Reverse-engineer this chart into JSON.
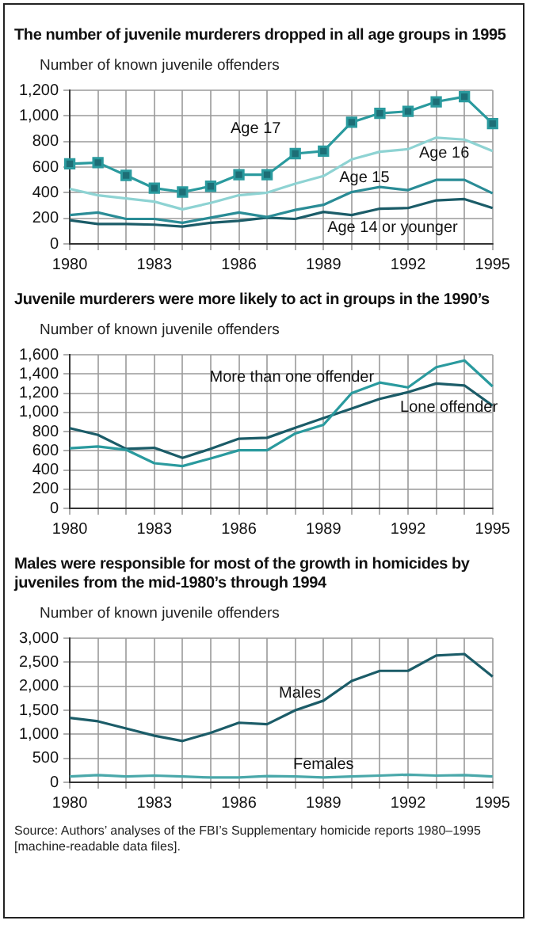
{
  "chart_data": [
    {
      "type": "line",
      "title": "The number of juvenile murderers dropped in all age groups in 1995",
      "ylabel": "Number of known juvenile offenders",
      "x": [
        1980,
        1981,
        1982,
        1983,
        1984,
        1985,
        1986,
        1987,
        1988,
        1989,
        1990,
        1991,
        1992,
        1993,
        1994,
        1995
      ],
      "xlim": [
        1980,
        1995
      ],
      "xticks": [
        1980,
        {
          "value": 1981,
          "label": null
        },
        {
          "value": 1982,
          "label": null
        },
        1983,
        {
          "value": 1984,
          "label": null
        },
        {
          "value": 1985,
          "label": null
        },
        1986,
        {
          "value": 1987,
          "label": null
        },
        {
          "value": 1988,
          "label": null
        },
        1989,
        {
          "value": 1990,
          "label": null
        },
        {
          "value": 1991,
          "label": null
        },
        1992,
        {
          "value": 1993,
          "label": null
        },
        {
          "value": 1994,
          "label": null
        },
        1995
      ],
      "ylim": [
        0,
        1200
      ],
      "yticks": [
        0,
        200,
        400,
        600,
        800,
        {
          "value": 1000,
          "label": "1,000"
        },
        {
          "value": 1200,
          "label": "1,200"
        }
      ],
      "grid": true,
      "legend": false,
      "series": [
        {
          "name": "Age 17",
          "color": "#2a9a9e",
          "marker": "square",
          "values": [
            625,
            635,
            535,
            435,
            405,
            450,
            540,
            540,
            705,
            725,
            950,
            1020,
            1035,
            1110,
            1150,
            940
          ]
        },
        {
          "name": "Age 16",
          "color": "#8ed3d3",
          "values": [
            430,
            380,
            355,
            330,
            270,
            320,
            380,
            400,
            470,
            530,
            660,
            720,
            740,
            830,
            815,
            725
          ]
        },
        {
          "name": "Age 15",
          "color": "#2a8c96",
          "values": [
            225,
            245,
            195,
            195,
            165,
            205,
            245,
            210,
            265,
            305,
            405,
            445,
            420,
            500,
            500,
            395
          ]
        },
        {
          "name": "Age 14 or younger",
          "color": "#1b5c68",
          "values": [
            185,
            155,
            155,
            150,
            135,
            165,
            180,
            205,
            195,
            250,
            225,
            275,
            280,
            340,
            350,
            280
          ]
        }
      ]
    },
    {
      "type": "line",
      "title": "Juvenile murderers were more likely to act in groups in the 1990’s",
      "ylabel": "Number of known juvenile offenders",
      "x": [
        1980,
        1981,
        1982,
        1983,
        1984,
        1985,
        1986,
        1987,
        1988,
        1989,
        1990,
        1991,
        1992,
        1993,
        1994,
        1995
      ],
      "xlim": [
        1980,
        1995
      ],
      "xticks": [
        1980,
        {
          "value": 1981,
          "label": null
        },
        {
          "value": 1982,
          "label": null
        },
        1983,
        {
          "value": 1984,
          "label": null
        },
        {
          "value": 1985,
          "label": null
        },
        1986,
        {
          "value": 1987,
          "label": null
        },
        {
          "value": 1988,
          "label": null
        },
        1989,
        {
          "value": 1990,
          "label": null
        },
        {
          "value": 1991,
          "label": null
        },
        1992,
        {
          "value": 1993,
          "label": null
        },
        {
          "value": 1994,
          "label": null
        },
        1995
      ],
      "ylim": [
        0,
        1600
      ],
      "yticks": [
        0,
        200,
        400,
        600,
        800,
        {
          "value": 1000,
          "label": "1,000"
        },
        {
          "value": 1200,
          "label": "1,200"
        },
        {
          "value": 1400,
          "label": "1,400"
        },
        {
          "value": 1600,
          "label": "1,600"
        }
      ],
      "grid": true,
      "legend": false,
      "series": [
        {
          "name": "More than one offender",
          "color": "#2a9a9e",
          "values": [
            625,
            645,
            610,
            470,
            440,
            520,
            605,
            605,
            780,
            870,
            1200,
            1310,
            1260,
            1470,
            1540,
            1270
          ]
        },
        {
          "name": "Lone offender",
          "color": "#1b5c68",
          "values": [
            835,
            765,
            620,
            630,
            525,
            620,
            725,
            735,
            840,
            940,
            1040,
            1140,
            1210,
            1300,
            1280,
            1070
          ]
        }
      ]
    },
    {
      "type": "line",
      "title": "Males were responsible for most of the growth in homicides by juveniles from the mid-1980’s through 1994",
      "ylabel": "Number of known juvenile offenders",
      "x": [
        1980,
        1981,
        1982,
        1983,
        1984,
        1985,
        1986,
        1987,
        1988,
        1989,
        1990,
        1991,
        1992,
        1993,
        1994,
        1995
      ],
      "xlim": [
        1980,
        1995
      ],
      "xticks": [
        1980,
        {
          "value": 1981,
          "label": null
        },
        {
          "value": 1982,
          "label": null
        },
        1983,
        {
          "value": 1984,
          "label": null
        },
        {
          "value": 1985,
          "label": null
        },
        1986,
        {
          "value": 1987,
          "label": null
        },
        {
          "value": 1988,
          "label": null
        },
        1989,
        {
          "value": 1990,
          "label": null
        },
        {
          "value": 1991,
          "label": null
        },
        1992,
        {
          "value": 1993,
          "label": null
        },
        {
          "value": 1994,
          "label": null
        },
        1995
      ],
      "ylim": [
        0,
        3000
      ],
      "yticks": [
        0,
        500,
        {
          "value": 1000,
          "label": "1,000"
        },
        {
          "value": 1500,
          "label": "1,500"
        },
        {
          "value": 2000,
          "label": "2,000"
        },
        {
          "value": 2500,
          "label": "2,500"
        },
        {
          "value": 3000,
          "label": "3,000"
        }
      ],
      "grid": true,
      "legend": false,
      "annotations": [
        "Source:  Authors’ analyses of the FBI’s Supplementary homicide reports 1980–1995 [machine-readable data files]."
      ],
      "series": [
        {
          "name": "Males",
          "color": "#1b5c68",
          "values": [
            1340,
            1270,
            1120,
            970,
            860,
            1030,
            1240,
            1210,
            1500,
            1700,
            2110,
            2320,
            2320,
            2640,
            2670,
            2200
          ]
        },
        {
          "name": "Females",
          "color": "#4aa8aa",
          "values": [
            120,
            150,
            120,
            140,
            120,
            100,
            100,
            130,
            120,
            100,
            120,
            140,
            160,
            140,
            150,
            120
          ]
        }
      ]
    }
  ]
}
